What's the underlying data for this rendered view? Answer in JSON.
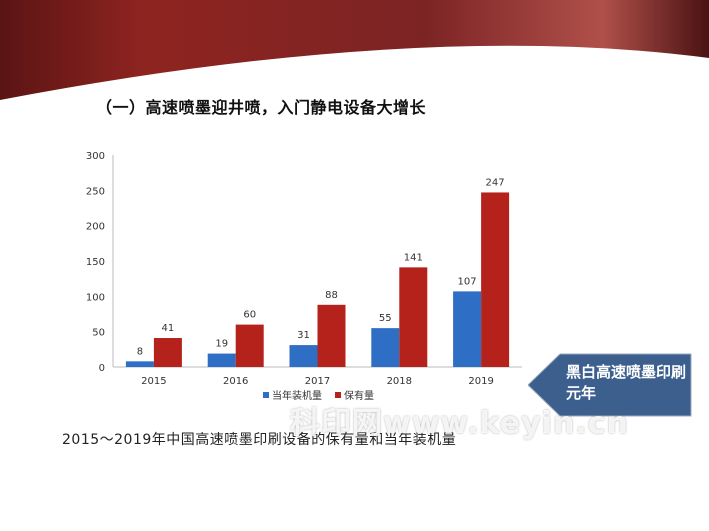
{
  "slide": {
    "title": "（一）高速喷墨迎井喷，入门静电设备大增长",
    "caption": "2015～2019年中国高速喷墨印刷设备的保有量和当年装机量",
    "callout": "黑白高速喷墨印刷元年",
    "watermark": "科印网www.keyin.cn"
  },
  "colors": {
    "banner": "#7a1c1c",
    "blue": "#2e6ec4",
    "red": "#b5221c",
    "callout": "#3c5f8e"
  },
  "chart_data": {
    "type": "bar",
    "categories": [
      "2015",
      "2016",
      "2017",
      "2018",
      "2019"
    ],
    "series": [
      {
        "name": "当年装机量",
        "values": [
          8,
          19,
          31,
          55,
          107
        ],
        "color": "#2e6ec4"
      },
      {
        "name": "保有量",
        "values": [
          41,
          60,
          88,
          141,
          247
        ],
        "color": "#b5221c"
      }
    ],
    "ylim": [
      0,
      300
    ],
    "yticks": [
      0,
      50,
      100,
      150,
      200,
      250,
      300
    ],
    "grid": false,
    "legend": "bottom",
    "data_labels": true
  }
}
